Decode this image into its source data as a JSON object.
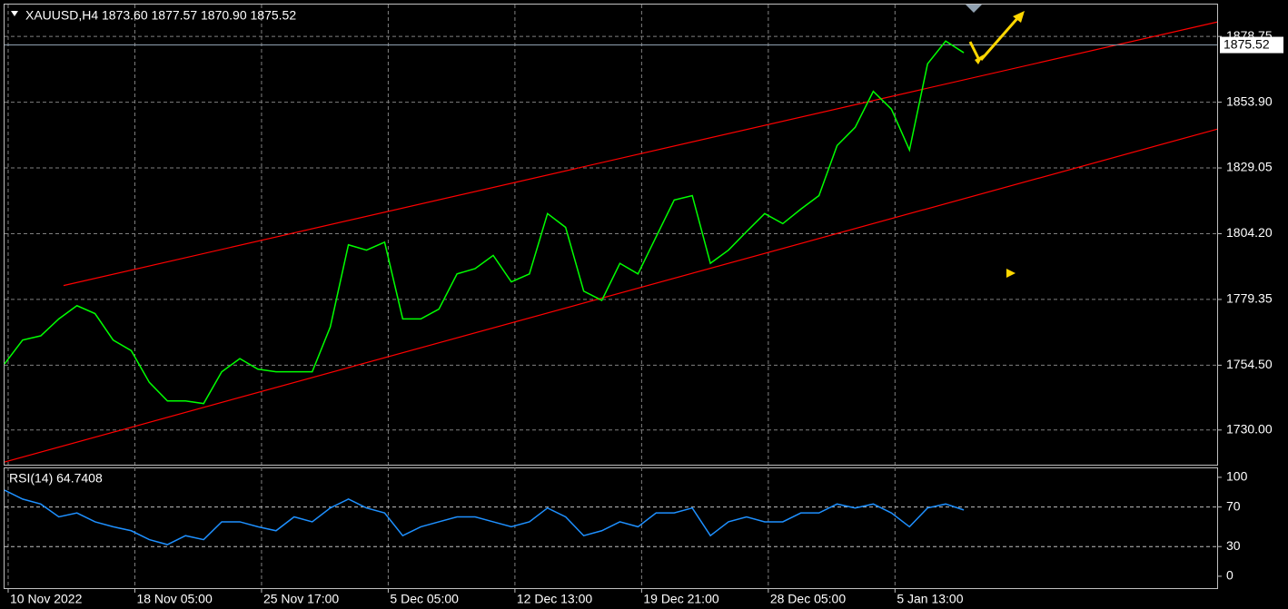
{
  "chart_data": [
    {
      "type": "line",
      "title": "XAUUSD,H4  1873.60 1877.57 1870.90 1875.52",
      "x": [
        0,
        5,
        10,
        15,
        20,
        25,
        30,
        35,
        40,
        45,
        50,
        55,
        60,
        65,
        70,
        75,
        80,
        85,
        90,
        95,
        100,
        105,
        110,
        115,
        120,
        125,
        130,
        135,
        140,
        145,
        150,
        155,
        160,
        165,
        170,
        175,
        180,
        185,
        190,
        195,
        200,
        205,
        210,
        215,
        220,
        225,
        230,
        235,
        240,
        245,
        250,
        255,
        260,
        265
      ],
      "series": [
        {
          "color": "#00ff00",
          "values": [
            1755,
            1764,
            1765.6,
            1772,
            1777,
            1774,
            1764,
            1760,
            1748,
            1741,
            1741,
            1740,
            1752,
            1757,
            1753,
            1752,
            1752,
            1752,
            1769,
            1800,
            1798,
            1801,
            1772,
            1772,
            1775.7,
            1789,
            1791,
            1796,
            1786,
            1789,
            1811.8,
            1806.6,
            1782.5,
            1779,
            1793,
            1789,
            1803,
            1816.9,
            1818.6,
            1793,
            1798,
            1805,
            1811.8,
            1808,
            1813.5,
            1818.6,
            1837.5,
            1844.4,
            1858,
            1851.3,
            1835.8,
            1868.4,
            1877,
            1872.6
          ]
        }
      ],
      "channel_lines": [
        {
          "color": "#ff0000",
          "x": [
            16.3,
            335
          ],
          "values": [
            1784.6,
            1884.2
          ]
        },
        {
          "color": "#ff0000",
          "x": [
            0,
            335
          ],
          "values": [
            1717.9,
            1843.7
          ]
        }
      ],
      "last_price": 1875.52,
      "xlim": [
        0,
        335
      ],
      "ylim": [
        1716.9,
        1890.8
      ],
      "xticks": [
        {
          "value": 1,
          "label": "10 Nov 2022"
        },
        {
          "value": 36,
          "label": "18 Nov 05:00"
        },
        {
          "value": 71,
          "label": "25 Nov 17:00"
        },
        {
          "value": 106,
          "label": "5 Dec 05:00"
        },
        {
          "value": 141,
          "label": "12 Dec 13:00"
        },
        {
          "value": 176,
          "label": "19 Dec 21:00"
        },
        {
          "value": 211,
          "label": "28 Dec 05:00"
        },
        {
          "value": 246,
          "label": "5 Jan 13:00"
        }
      ],
      "yticks": [
        {
          "value": 1730,
          "label": "1730.00"
        },
        {
          "value": 1754.5,
          "label": "1754.50"
        },
        1779.35,
        {
          "value": 1804.2,
          "label": "1804.20"
        },
        1829.05,
        {
          "value": 1853.9,
          "label": "1853.90"
        },
        1878.75
      ],
      "grid": true
    },
    {
      "type": "line",
      "title": "RSI(14) 64.7408",
      "x": [
        0,
        5,
        10,
        15,
        20,
        25,
        30,
        35,
        40,
        45,
        50,
        55,
        60,
        65,
        70,
        75,
        80,
        85,
        90,
        95,
        100,
        105,
        110,
        115,
        120,
        125,
        130,
        135,
        140,
        145,
        150,
        155,
        160,
        165,
        170,
        175,
        180,
        185,
        190,
        195,
        200,
        205,
        210,
        215,
        220,
        225,
        230,
        235,
        240,
        245,
        250,
        255,
        260,
        265
      ],
      "series": [
        {
          "color": "#1e90ff",
          "values": [
            87,
            78,
            73,
            60,
            64,
            55,
            50,
            46,
            37,
            32,
            41,
            37,
            55,
            55,
            50,
            46,
            60,
            55,
            69,
            78,
            69,
            64,
            41,
            50,
            55,
            60,
            60,
            55,
            50,
            55,
            69,
            60,
            41,
            46,
            55,
            50,
            64,
            64,
            69,
            41,
            55,
            60,
            55,
            55,
            64,
            64,
            73,
            69,
            73,
            64,
            50,
            69,
            73,
            67
          ]
        }
      ],
      "xlim": [
        0,
        335
      ],
      "ylim": [
        -12,
        110
      ],
      "yticks": [
        100,
        70,
        30,
        0
      ],
      "levels": [
        70,
        30
      ]
    }
  ]
}
